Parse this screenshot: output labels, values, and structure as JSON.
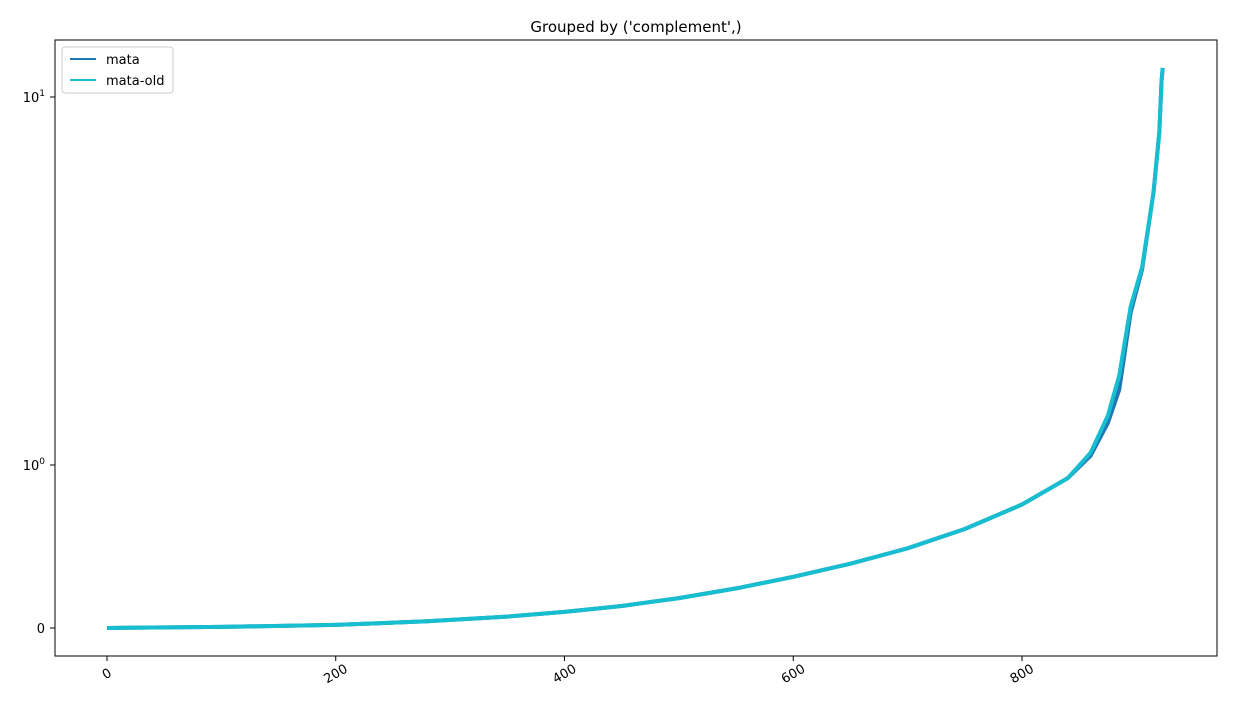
{
  "chart_data": {
    "type": "line",
    "title": "Grouped by ('complement',)",
    "xlabel": "",
    "ylabel": "",
    "yscale": "symlog",
    "xlim": [
      -45,
      970
    ],
    "grid": false,
    "legend_position": "top-left",
    "x_ticks": [
      {
        "value": 0,
        "label": "0"
      },
      {
        "value": 200,
        "label": "200"
      },
      {
        "value": 400,
        "label": "400"
      },
      {
        "value": 600,
        "label": "600"
      },
      {
        "value": 800,
        "label": "800"
      }
    ],
    "y_ticks": [
      {
        "value": 0,
        "label": "0"
      },
      {
        "value": 1,
        "label": "10",
        "exp": "0"
      },
      {
        "value": 10,
        "label": "10",
        "exp": "1"
      }
    ],
    "series": [
      {
        "name": "mata",
        "color": "#1f77b4",
        "x": [
          0,
          100,
          200,
          280,
          350,
          400,
          450,
          500,
          550,
          600,
          650,
          700,
          750,
          800,
          840,
          860,
          875,
          885,
          895,
          905,
          915,
          920,
          922,
          923
        ],
        "y": [
          0.0,
          0.001,
          0.004,
          0.012,
          0.025,
          0.04,
          0.062,
          0.095,
          0.14,
          0.2,
          0.275,
          0.37,
          0.5,
          0.68,
          0.89,
          1.06,
          1.3,
          1.6,
          2.6,
          3.4,
          5.5,
          8.0,
          11.0,
          12.0
        ]
      },
      {
        "name": "mata-old",
        "color": "#17becf",
        "x": [
          0,
          100,
          200,
          280,
          350,
          400,
          450,
          500,
          550,
          600,
          650,
          700,
          750,
          800,
          840,
          860,
          875,
          885,
          895,
          905,
          915,
          920,
          922,
          923
        ],
        "y": [
          0.0,
          0.001,
          0.004,
          0.012,
          0.025,
          0.04,
          0.062,
          0.095,
          0.14,
          0.2,
          0.275,
          0.37,
          0.5,
          0.68,
          0.89,
          1.08,
          1.36,
          1.75,
          2.7,
          3.45,
          5.5,
          8.0,
          11.0,
          12.0
        ]
      }
    ]
  }
}
